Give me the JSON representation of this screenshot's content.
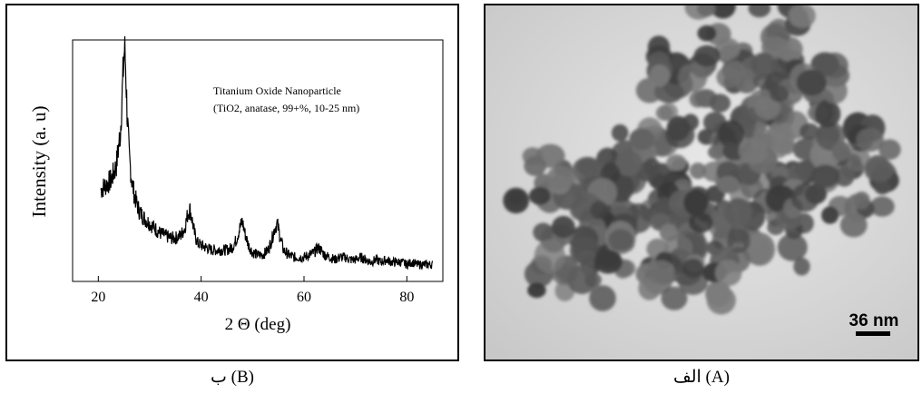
{
  "figure": {
    "caption_b": "ب (B)",
    "caption_a": "الف (A)"
  },
  "panel_b": {
    "chart_data": {
      "type": "line",
      "title": "",
      "annotation_line1": "Titanium Oxide Nanoparticle",
      "annotation_line2": "(TiO2, anatase, 99+%, 10-25 nm)",
      "xlabel": "2 Θ (deg)",
      "ylabel": "Intensity (a. u)",
      "xlim": [
        15,
        87
      ],
      "ylim": [
        0,
        1
      ],
      "x_ticks": [
        20,
        40,
        60,
        80
      ],
      "x_tick_labels": [
        "20",
        "40",
        "60",
        "80"
      ],
      "grid": false,
      "series": [
        {
          "x": [
            20.5,
            21.5,
            22.5,
            23.5,
            24.3,
            24.8,
            25.1,
            25.3,
            25.6,
            26.0,
            26.5,
            27.0,
            27.5,
            28,
            29,
            30,
            31,
            32,
            33,
            34,
            35,
            36,
            36.8,
            37.4,
            37.8,
            38.2,
            38.7,
            39.3,
            40,
            41,
            42,
            43,
            44,
            45,
            46,
            46.8,
            47.5,
            48.0,
            48.5,
            49.2,
            50,
            51,
            52,
            53,
            53.7,
            54.3,
            54.8,
            55.4,
            56,
            57,
            58,
            59,
            60,
            61,
            62,
            62.7,
            63.3,
            64,
            65,
            66,
            67,
            68,
            69,
            70,
            71,
            72,
            73,
            74,
            75,
            76,
            77,
            78,
            79,
            80,
            81,
            82,
            83,
            84,
            85
          ],
          "y": [
            0.38,
            0.4,
            0.42,
            0.48,
            0.62,
            0.85,
            0.97,
            0.9,
            0.7,
            0.52,
            0.42,
            0.36,
            0.32,
            0.29,
            0.26,
            0.24,
            0.22,
            0.2,
            0.19,
            0.18,
            0.18,
            0.19,
            0.22,
            0.28,
            0.3,
            0.26,
            0.2,
            0.16,
            0.15,
            0.14,
            0.13,
            0.13,
            0.13,
            0.13,
            0.14,
            0.17,
            0.22,
            0.25,
            0.2,
            0.15,
            0.12,
            0.11,
            0.11,
            0.13,
            0.17,
            0.22,
            0.24,
            0.18,
            0.13,
            0.11,
            0.1,
            0.1,
            0.1,
            0.11,
            0.12,
            0.14,
            0.13,
            0.11,
            0.1,
            0.09,
            0.1,
            0.1,
            0.09,
            0.09,
            0.1,
            0.09,
            0.08,
            0.09,
            0.08,
            0.09,
            0.08,
            0.08,
            0.08,
            0.07,
            0.08,
            0.07,
            0.07,
            0.07,
            0.07
          ]
        }
      ]
    }
  },
  "panel_a": {
    "scale_bar_label": "36 nm"
  }
}
